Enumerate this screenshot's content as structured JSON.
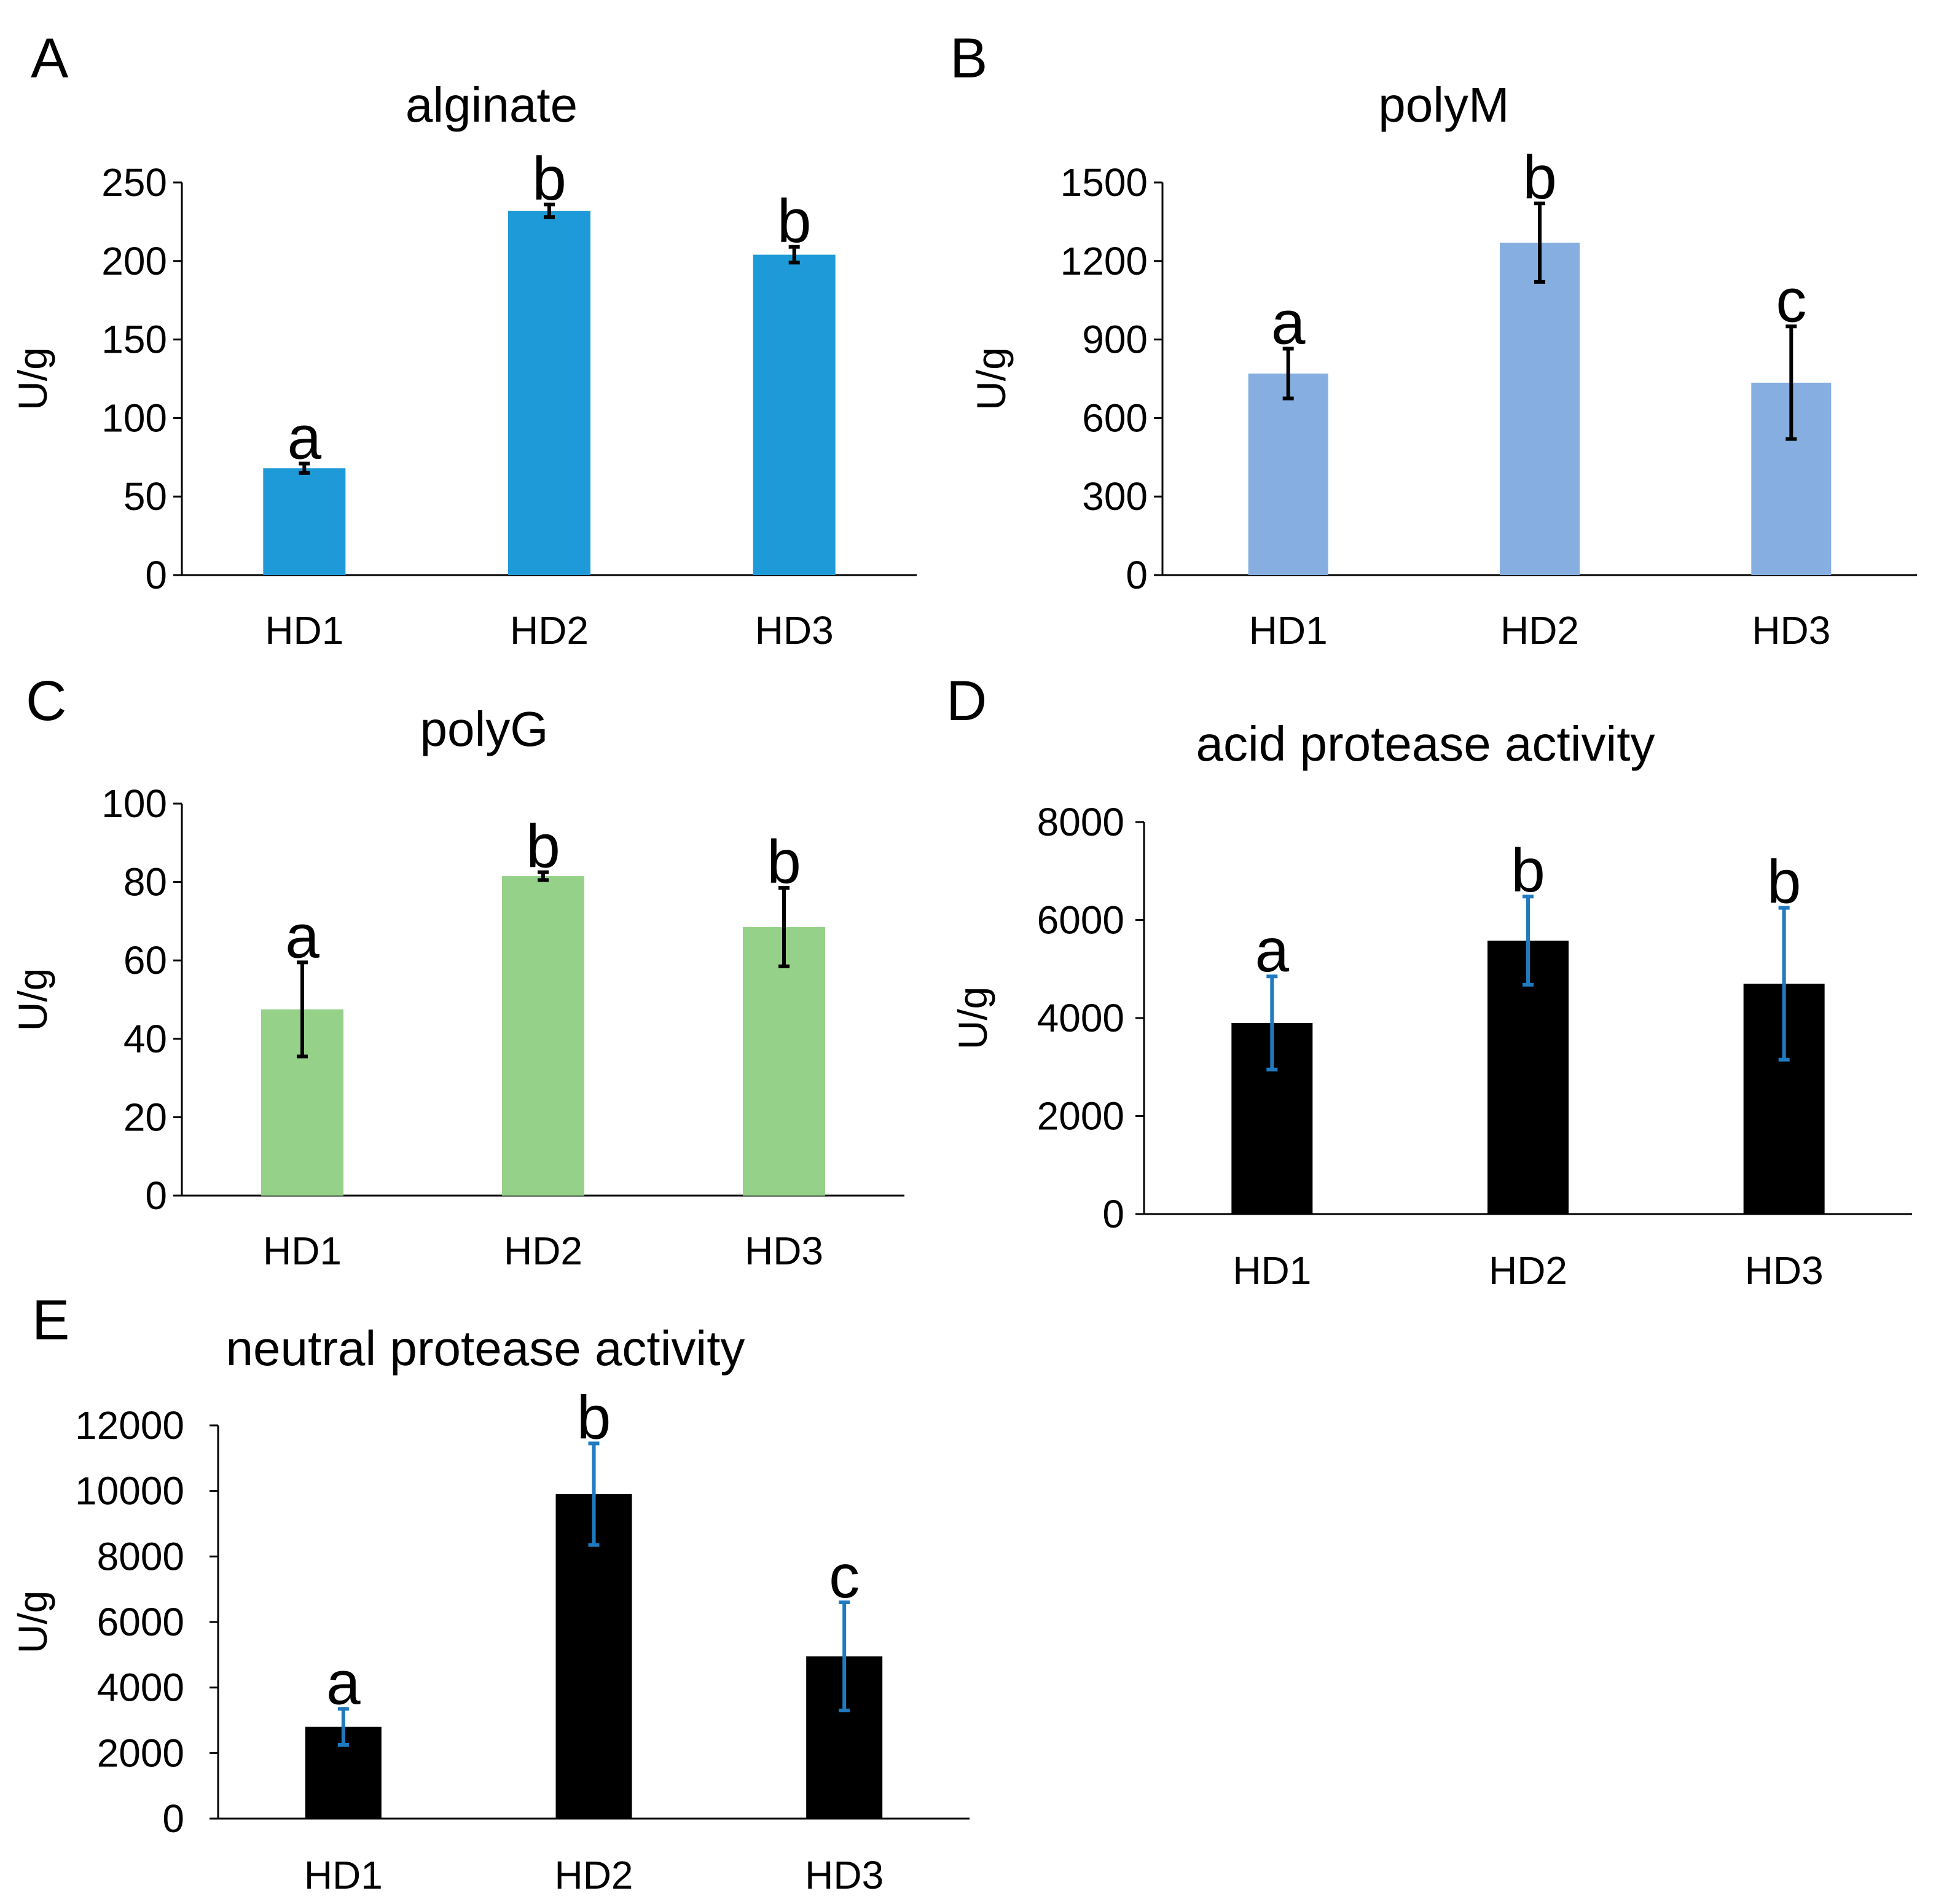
{
  "chart_data": [
    {
      "panel": "A",
      "type": "bar",
      "title": "alginate",
      "ylabel": "U/g",
      "xlabel": "",
      "categories": [
        "HD1",
        "HD2",
        "HD3"
      ],
      "values": [
        68,
        232,
        204
      ],
      "errors": [
        3,
        4,
        5
      ],
      "significance": [
        "a",
        "b",
        "b"
      ],
      "ylim": [
        0,
        250
      ],
      "yticks": [
        "0",
        "50",
        "100",
        "150",
        "200",
        "250"
      ],
      "bar_color": "#1f9ad8",
      "error_color": "#000000"
    },
    {
      "panel": "B",
      "type": "bar",
      "title": "polyM",
      "ylabel": "U/g",
      "xlabel": "",
      "categories": [
        "HD1",
        "HD2",
        "HD3"
      ],
      "values": [
        770,
        1270,
        735
      ],
      "errors": [
        95,
        150,
        215
      ],
      "significance": [
        "a",
        "b",
        "c"
      ],
      "ylim": [
        0,
        1500
      ],
      "yticks": [
        "0",
        "300",
        "600",
        "900",
        "1200",
        "1500"
      ],
      "bar_color": "#86aee0",
      "error_color": "#000000"
    },
    {
      "panel": "C",
      "type": "bar",
      "title": "polyG",
      "ylabel": "U/g",
      "xlabel": "",
      "categories": [
        "HD1",
        "HD2",
        "HD3"
      ],
      "values": [
        47.5,
        81.5,
        68.5
      ],
      "errors": [
        12,
        1,
        10
      ],
      "significance": [
        "a",
        "b",
        "b"
      ],
      "ylim": [
        0,
        100
      ],
      "yticks": [
        "0",
        "20",
        "40",
        "60",
        "80",
        "100"
      ],
      "bar_color": "#96d18a",
      "error_color": "#000000"
    },
    {
      "panel": "D",
      "type": "bar",
      "title": "acid protease activity",
      "ylabel": "U/g",
      "xlabel": "",
      "categories": [
        "HD1",
        "HD2",
        "HD3"
      ],
      "values": [
        3900,
        5580,
        4700
      ],
      "errors": [
        950,
        900,
        1550
      ],
      "significance": [
        "a",
        "b",
        "b"
      ],
      "ylim": [
        0,
        8000
      ],
      "yticks": [
        "0",
        "2000",
        "4000",
        "6000",
        "8000"
      ],
      "bar_color": "#000000",
      "error_color": "#1f7ac0"
    },
    {
      "panel": "E",
      "type": "bar",
      "title": "neutral protease activity",
      "ylabel": "U/g",
      "xlabel": "",
      "categories": [
        "HD1",
        "HD2",
        "HD3"
      ],
      "values": [
        2800,
        9900,
        4950
      ],
      "errors": [
        550,
        1550,
        1650
      ],
      "significance": [
        "a",
        "b",
        "c"
      ],
      "ylim": [
        0,
        12000
      ],
      "yticks": [
        "0",
        "2000",
        "4000",
        "6000",
        "8000",
        "10000",
        "12000"
      ],
      "bar_color": "#000000",
      "error_color": "#1f7ac0"
    }
  ]
}
